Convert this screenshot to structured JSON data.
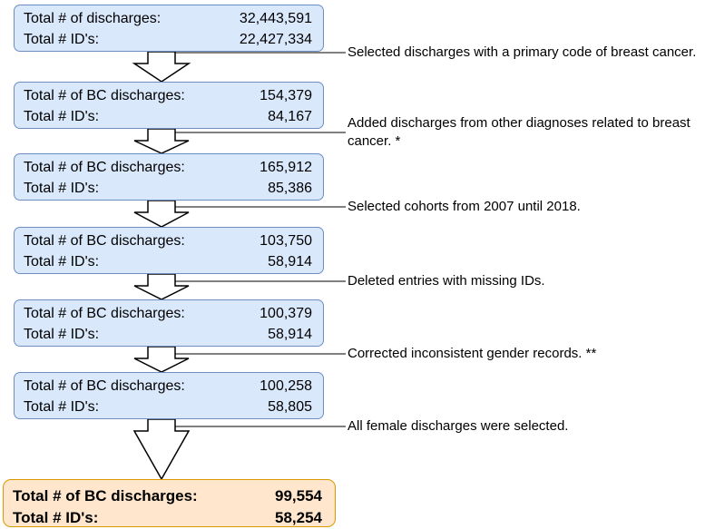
{
  "boxes": [
    {
      "rows": [
        {
          "label": "Total # of discharges:",
          "value": "32,443,591"
        },
        {
          "label": "Total # ID's:",
          "value": "22,427,334"
        }
      ]
    },
    {
      "rows": [
        {
          "label": "Total # of BC discharges:",
          "value": "154,379"
        },
        {
          "label": "Total # ID's:",
          "value": "84,167"
        }
      ]
    },
    {
      "rows": [
        {
          "label": "Total # of BC discharges:",
          "value": "165,912"
        },
        {
          "label": "Total # ID's:",
          "value": "85,386"
        }
      ]
    },
    {
      "rows": [
        {
          "label": "Total # of BC discharges:",
          "value": "103,750"
        },
        {
          "label": "Total # ID's:",
          "value": "58,914"
        }
      ]
    },
    {
      "rows": [
        {
          "label": "Total # of BC discharges:",
          "value": "100,379"
        },
        {
          "label": "Total # ID's:",
          "value": "58,914"
        }
      ]
    },
    {
      "rows": [
        {
          "label": "Total # of BC discharges:",
          "value": "100,258"
        },
        {
          "label": "Total # ID's:",
          "value": "58,805"
        }
      ]
    },
    {
      "rows": [
        {
          "label": "Total # of BC discharges:",
          "value": "99,554"
        },
        {
          "label": "Total # ID's:",
          "value": "58,254"
        }
      ]
    }
  ],
  "steps": [
    "Selected discharges with a primary code of breast cancer.",
    "Added discharges from other diagnoses related to breast cancer. *",
    "Selected cohorts from 2007 until 2018.",
    "Deleted entries with missing IDs.",
    "Corrected inconsistent gender records. **",
    "All female discharges were selected."
  ]
}
